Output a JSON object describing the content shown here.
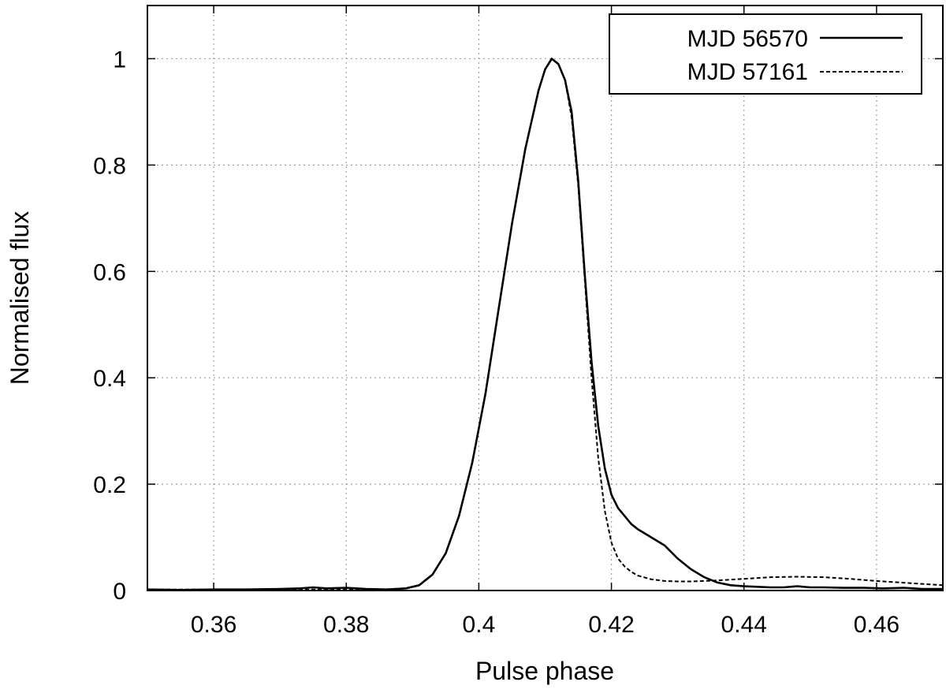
{
  "chart_data": {
    "type": "line",
    "xlabel": "Pulse phase",
    "ylabel": "Normalised flux",
    "xlim": [
      0.35,
      0.47
    ],
    "ylim": [
      0,
      1.1
    ],
    "x_ticks": [
      0.36,
      0.38,
      0.4,
      0.42,
      0.44,
      0.46
    ],
    "x_tick_labels": [
      "0.36",
      "0.38",
      "0.4",
      "0.42",
      "0.44",
      "0.46"
    ],
    "y_ticks": [
      0,
      0.2,
      0.4,
      0.6,
      0.8,
      1
    ],
    "y_tick_labels": [
      "0",
      "0.2",
      "0.4",
      "0.6",
      "0.8",
      "1"
    ],
    "grid": true,
    "legend_position": "top-right",
    "series": [
      {
        "name": "MJD 56570",
        "style": "solid",
        "color": "#000000",
        "x": [
          0.35,
          0.355,
          0.36,
          0.365,
          0.37,
          0.373,
          0.375,
          0.377,
          0.38,
          0.383,
          0.386,
          0.389,
          0.391,
          0.393,
          0.395,
          0.397,
          0.399,
          0.401,
          0.403,
          0.405,
          0.407,
          0.409,
          0.41,
          0.411,
          0.412,
          0.413,
          0.414,
          0.415,
          0.416,
          0.417,
          0.418,
          0.419,
          0.42,
          0.421,
          0.422,
          0.423,
          0.424,
          0.426,
          0.428,
          0.43,
          0.432,
          0.434,
          0.436,
          0.438,
          0.44,
          0.442,
          0.444,
          0.446,
          0.448,
          0.45,
          0.452,
          0.455,
          0.458,
          0.461,
          0.464,
          0.467,
          0.47
        ],
        "y": [
          0.002,
          0.001,
          0.002,
          0.002,
          0.003,
          0.004,
          0.006,
          0.004,
          0.005,
          0.003,
          0.002,
          0.004,
          0.01,
          0.03,
          0.07,
          0.14,
          0.24,
          0.37,
          0.53,
          0.69,
          0.83,
          0.94,
          0.98,
          1.0,
          0.99,
          0.96,
          0.9,
          0.77,
          0.59,
          0.43,
          0.31,
          0.23,
          0.18,
          0.155,
          0.14,
          0.125,
          0.115,
          0.1,
          0.085,
          0.06,
          0.04,
          0.025,
          0.015,
          0.01,
          0.008,
          0.007,
          0.006,
          0.006,
          0.008,
          0.006,
          0.006,
          0.005,
          0.005,
          0.004,
          0.005,
          0.003,
          0.003
        ]
      },
      {
        "name": "MJD 57161",
        "style": "dashed",
        "color": "#000000",
        "x": [
          0.35,
          0.36,
          0.37,
          0.38,
          0.386,
          0.389,
          0.391,
          0.393,
          0.395,
          0.397,
          0.399,
          0.401,
          0.403,
          0.405,
          0.407,
          0.409,
          0.41,
          0.411,
          0.412,
          0.413,
          0.414,
          0.415,
          0.416,
          0.417,
          0.418,
          0.419,
          0.42,
          0.421,
          0.422,
          0.423,
          0.424,
          0.426,
          0.428,
          0.43,
          0.432,
          0.434,
          0.436,
          0.44,
          0.444,
          0.448,
          0.452,
          0.456,
          0.46,
          0.465,
          0.47
        ],
        "y": [
          0.002,
          0.002,
          0.002,
          0.002,
          0.002,
          0.004,
          0.01,
          0.03,
          0.07,
          0.14,
          0.24,
          0.37,
          0.53,
          0.69,
          0.83,
          0.94,
          0.98,
          1.0,
          0.99,
          0.96,
          0.89,
          0.76,
          0.58,
          0.4,
          0.25,
          0.15,
          0.09,
          0.06,
          0.045,
          0.035,
          0.028,
          0.021,
          0.018,
          0.017,
          0.017,
          0.018,
          0.019,
          0.022,
          0.025,
          0.026,
          0.025,
          0.022,
          0.018,
          0.014,
          0.01
        ]
      }
    ]
  }
}
